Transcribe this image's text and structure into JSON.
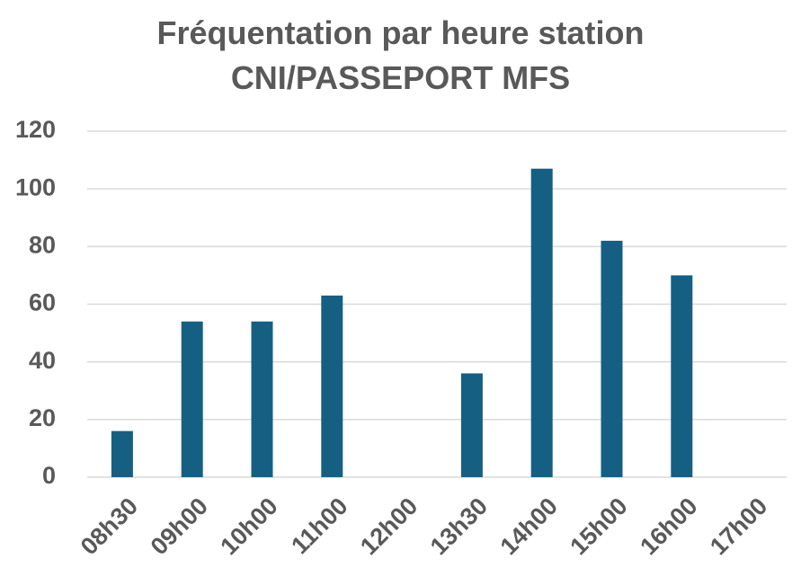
{
  "chart_data": {
    "type": "bar",
    "title": "Fréquentation par heure station CNI/PASSEPORT MFS",
    "categories": [
      "08h30",
      "09h00",
      "10h00",
      "11h00",
      "12h00",
      "13h30",
      "14h00",
      "15h00",
      "16h00",
      "17h00"
    ],
    "values": [
      16,
      54,
      54,
      63,
      0,
      36,
      107,
      82,
      70,
      0
    ],
    "color": "#156082",
    "ylim": [
      0,
      120
    ],
    "yticks": [
      0,
      20,
      40,
      60,
      80,
      100,
      120
    ],
    "grid": true
  }
}
